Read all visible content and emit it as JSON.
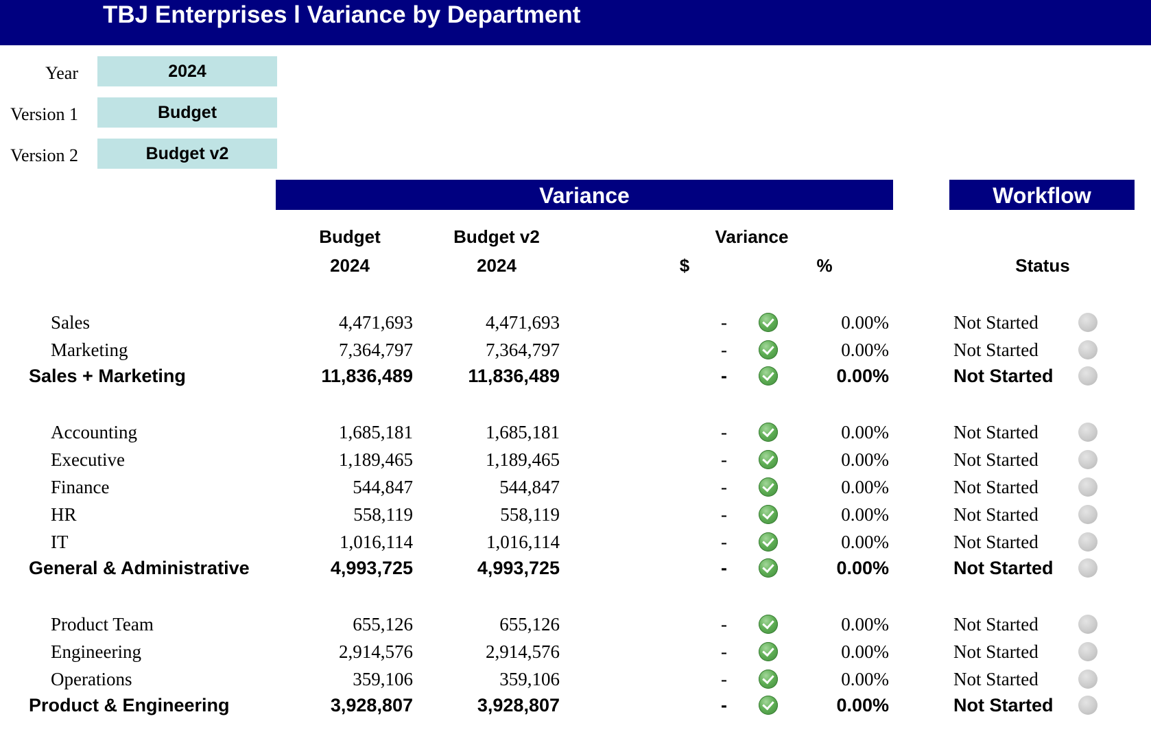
{
  "title": "TBJ Enterprises l Variance by Department",
  "params": {
    "year_label": "Year",
    "year_value": "2024",
    "version1_label": "Version 1",
    "version1_value": "Budget",
    "version2_label": "Version 2",
    "version2_value": "Budget v2"
  },
  "sections": {
    "variance": "Variance",
    "workflow": "Workflow"
  },
  "headers": {
    "col1_name": "Budget",
    "col1_year": "2024",
    "col2_name": "Budget v2",
    "col2_year": "2024",
    "variance": "Variance",
    "dollar": "$",
    "percent": "%",
    "status": "Status"
  },
  "colors": {
    "brand_navy": "#000080",
    "param_fill": "#bfe3e4",
    "check_green": "#5fae55",
    "status_gray": "#cccccc"
  },
  "rows": [
    {
      "name": "Sales",
      "v1": "4,471,693",
      "v2": "4,471,693",
      "dollar": "-",
      "pct": "0.00%",
      "status": "Not Started",
      "total": false,
      "variance_icon": "check-icon",
      "status_icon": "dot-icon"
    },
    {
      "name": "Marketing",
      "v1": "7,364,797",
      "v2": "7,364,797",
      "dollar": "-",
      "pct": "0.00%",
      "status": "Not Started",
      "total": false,
      "variance_icon": "check-icon",
      "status_icon": "dot-icon"
    },
    {
      "name": "Sales + Marketing",
      "v1": "11,836,489",
      "v2": "11,836,489",
      "dollar": "-",
      "pct": "0.00%",
      "status": "Not Started",
      "total": true,
      "variance_icon": "check-icon",
      "status_icon": "dot-icon"
    },
    {
      "name": "Accounting",
      "v1": "1,685,181",
      "v2": "1,685,181",
      "dollar": "-",
      "pct": "0.00%",
      "status": "Not Started",
      "total": false,
      "variance_icon": "check-icon",
      "status_icon": "dot-icon"
    },
    {
      "name": "Executive",
      "v1": "1,189,465",
      "v2": "1,189,465",
      "dollar": "-",
      "pct": "0.00%",
      "status": "Not Started",
      "total": false,
      "variance_icon": "check-icon",
      "status_icon": "dot-icon"
    },
    {
      "name": "Finance",
      "v1": "544,847",
      "v2": "544,847",
      "dollar": "-",
      "pct": "0.00%",
      "status": "Not Started",
      "total": false,
      "variance_icon": "check-icon",
      "status_icon": "dot-icon"
    },
    {
      "name": "HR",
      "v1": "558,119",
      "v2": "558,119",
      "dollar": "-",
      "pct": "0.00%",
      "status": "Not Started",
      "total": false,
      "variance_icon": "check-icon",
      "status_icon": "dot-icon"
    },
    {
      "name": "IT",
      "v1": "1,016,114",
      "v2": "1,016,114",
      "dollar": "-",
      "pct": "0.00%",
      "status": "Not Started",
      "total": false,
      "variance_icon": "check-icon",
      "status_icon": "dot-icon"
    },
    {
      "name": "General & Administrative",
      "v1": "4,993,725",
      "v2": "4,993,725",
      "dollar": "-",
      "pct": "0.00%",
      "status": "Not Started",
      "total": true,
      "variance_icon": "check-icon",
      "status_icon": "dot-icon"
    },
    {
      "name": "Product Team",
      "v1": "655,126",
      "v2": "655,126",
      "dollar": "-",
      "pct": "0.00%",
      "status": "Not Started",
      "total": false,
      "variance_icon": "check-icon",
      "status_icon": "dot-icon"
    },
    {
      "name": "Engineering",
      "v1": "2,914,576",
      "v2": "2,914,576",
      "dollar": "-",
      "pct": "0.00%",
      "status": "Not Started",
      "total": false,
      "variance_icon": "check-icon",
      "status_icon": "dot-icon"
    },
    {
      "name": "Operations",
      "v1": "359,106",
      "v2": "359,106",
      "dollar": "-",
      "pct": "0.00%",
      "status": "Not Started",
      "total": false,
      "variance_icon": "check-icon",
      "status_icon": "dot-icon"
    },
    {
      "name": "Product & Engineering",
      "v1": "3,928,807",
      "v2": "3,928,807",
      "dollar": "-",
      "pct": "0.00%",
      "status": "Not Started",
      "total": true,
      "variance_icon": "check-icon",
      "status_icon": "dot-icon"
    }
  ]
}
